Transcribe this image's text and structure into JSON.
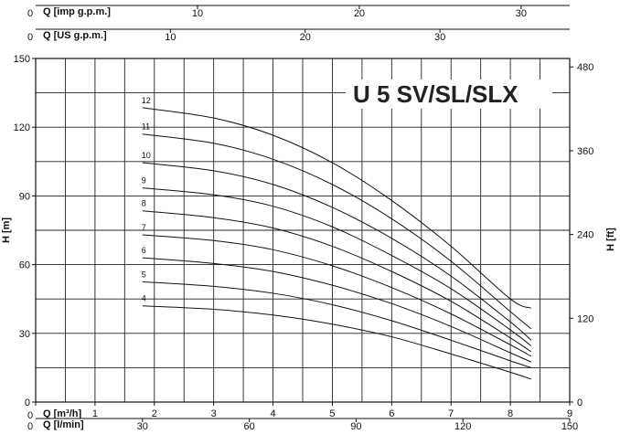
{
  "chart_data": {
    "type": "line",
    "title": "U 5 SV/SL/SLX",
    "xlabel": "Q [m³/h]",
    "ylabel": "H [m]",
    "ylabel_right": "H [ft]",
    "xlim": [
      0,
      9
    ],
    "ylim": [
      0,
      150
    ],
    "grid": true,
    "x_ticks": [
      "0",
      "1",
      "2",
      "3",
      "4",
      "5",
      "6",
      "7",
      "8",
      "9"
    ],
    "y_ticks": [
      "0",
      "30",
      "60",
      "90",
      "120",
      "150"
    ],
    "right_axis": {
      "label": "H [ft]",
      "ticks": [
        "0",
        "120",
        "240",
        "360",
        "480"
      ],
      "values": [
        0,
        120,
        240,
        360,
        480
      ],
      "max": 492.1
    },
    "secondary_x_axes": [
      {
        "label": "Q [l/min]",
        "position": "bottom",
        "zero_label": "0",
        "max": 150,
        "ticks": [
          "30",
          "60",
          "90",
          "120",
          "150"
        ],
        "values": [
          30,
          60,
          90,
          120,
          150
        ]
      },
      {
        "label": "Q [US g.p.m.]",
        "position": "top",
        "zero_label": "0",
        "max": 39.63,
        "ticks": [
          "10",
          "20",
          "30"
        ],
        "values": [
          10,
          20,
          30
        ]
      },
      {
        "label": "Q [imp g.p.m.]",
        "position": "top-outer",
        "zero_label": "0",
        "max": 33.0,
        "ticks": [
          "10",
          "20",
          "30"
        ],
        "values": [
          10,
          20,
          30
        ]
      }
    ],
    "series": [
      {
        "name": "4",
        "x": [
          1.8,
          3,
          4,
          5,
          6,
          7,
          8,
          8.35
        ],
        "y": [
          42,
          40.5,
          38,
          34,
          28.5,
          21,
          13,
          10
        ]
      },
      {
        "name": "5",
        "x": [
          1.8,
          3,
          4,
          5,
          6,
          7,
          8,
          8.35
        ],
        "y": [
          52.5,
          50.5,
          47.5,
          42.5,
          35.5,
          27,
          18,
          15
        ]
      },
      {
        "name": "6",
        "x": [
          1.8,
          3,
          4,
          5,
          6,
          7,
          8,
          8.35
        ],
        "y": [
          63,
          60.5,
          57,
          51,
          43,
          33,
          21.5,
          17.5
        ]
      },
      {
        "name": "7",
        "x": [
          1.8,
          3,
          4,
          5,
          6,
          7,
          8,
          8.35
        ],
        "y": [
          73,
          70.5,
          66.5,
          59.5,
          50,
          38.5,
          25,
          20
        ]
      },
      {
        "name": "8",
        "x": [
          1.8,
          3,
          4,
          5,
          6,
          7,
          8,
          8.35
        ],
        "y": [
          83.5,
          80.5,
          76,
          68,
          57,
          44,
          28,
          22
        ]
      },
      {
        "name": "9",
        "x": [
          1.8,
          3,
          4,
          5,
          6,
          7,
          8,
          8.35
        ],
        "y": [
          93.5,
          90.5,
          85.5,
          76.5,
          64,
          49.5,
          31.5,
          24.5
        ]
      },
      {
        "name": "10",
        "x": [
          1.8,
          3,
          4,
          5,
          6,
          7,
          8,
          8.35
        ],
        "y": [
          104.5,
          101,
          95,
          85,
          71.5,
          55,
          35,
          27
        ]
      },
      {
        "name": "11",
        "x": [
          1.8,
          3,
          4,
          5,
          6,
          7,
          8,
          8.35
        ],
        "y": [
          117,
          113,
          106,
          95,
          80,
          61.5,
          39.5,
          32
        ]
      },
      {
        "name": "12",
        "x": [
          1.8,
          3,
          4,
          5,
          6,
          7,
          8,
          8.35
        ],
        "y": [
          128.5,
          124,
          116.5,
          104.5,
          88,
          68,
          45,
          41
        ]
      }
    ]
  }
}
